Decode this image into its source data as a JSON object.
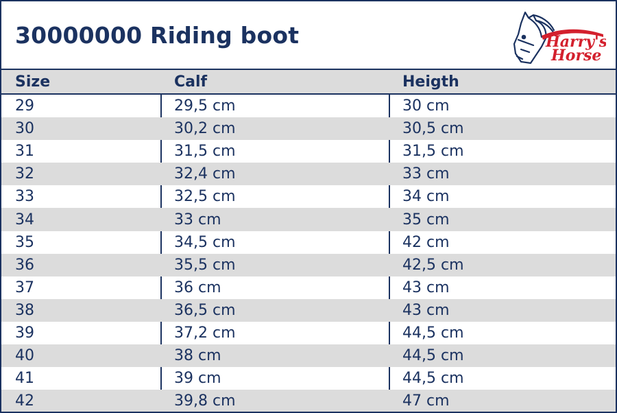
{
  "title": "30000000 Riding boot",
  "logo": {
    "brand": "Harry's Horse",
    "word1": "Harry's",
    "word2": "Horse",
    "accent": "#d3202d"
  },
  "colors": {
    "navy": "#1b3260",
    "shade": "#dcdcdc"
  },
  "table": {
    "headers": [
      "Size",
      "Calf",
      "Heigth"
    ],
    "rows": [
      [
        "29",
        "29,5 cm",
        "30 cm"
      ],
      [
        "30",
        "30,2 cm",
        "30,5 cm"
      ],
      [
        "31",
        "31,5 cm",
        "31,5 cm"
      ],
      [
        "32",
        "32,4 cm",
        "33 cm"
      ],
      [
        "33",
        "32,5 cm",
        "34 cm"
      ],
      [
        "34",
        "33 cm",
        "35 cm"
      ],
      [
        "35",
        "34,5 cm",
        "42 cm"
      ],
      [
        "36",
        "35,5 cm",
        "42,5 cm"
      ],
      [
        "37",
        "36 cm",
        "43 cm"
      ],
      [
        "38",
        "36,5 cm",
        "43 cm"
      ],
      [
        "39",
        "37,2 cm",
        "44,5 cm"
      ],
      [
        "40",
        "38 cm",
        "44,5 cm"
      ],
      [
        "41",
        "39 cm",
        "44,5 cm"
      ],
      [
        "42",
        "39,8 cm",
        "47 cm"
      ]
    ]
  }
}
